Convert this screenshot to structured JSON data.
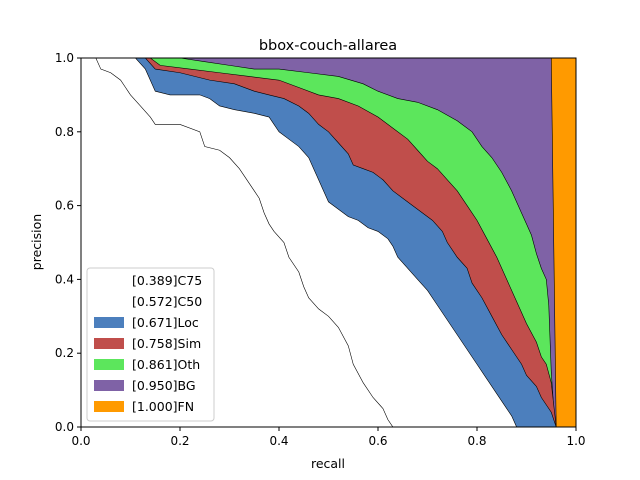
{
  "chart_data": {
    "type": "area",
    "title": "bbox-couch-allarea",
    "xlabel": "recall",
    "ylabel": "precision",
    "xlim": [
      0,
      1
    ],
    "ylim": [
      0,
      1
    ],
    "xticks": [
      "0.0",
      "0.2",
      "0.4",
      "0.6",
      "0.8",
      "1.0"
    ],
    "yticks": [
      "0.0",
      "0.2",
      "0.4",
      "0.6",
      "0.8",
      "1.0"
    ],
    "grid": false,
    "legend_position": "lower-left",
    "legend": [
      {
        "label": "[0.389]C75",
        "color": "#ffffff"
      },
      {
        "label": "[0.572]C50",
        "color": "#ffffff"
      },
      {
        "label": "[0.671]Loc",
        "color": "#4c7fbd"
      },
      {
        "label": "[0.758]Sim",
        "color": "#c04e4b"
      },
      {
        "label": "[0.861]Oth",
        "color": "#5ce65c"
      },
      {
        "label": "[0.950]BG",
        "color": "#7f62a6"
      },
      {
        "label": "[1.000]FN",
        "color": "#ff9a00"
      }
    ],
    "series": [
      {
        "name": "[0.389]C75",
        "color": "#ffffff",
        "points": [
          [
            0,
            1
          ],
          [
            0.03,
            1
          ],
          [
            0.04,
            0.97
          ],
          [
            0.06,
            0.96
          ],
          [
            0.08,
            0.94
          ],
          [
            0.09,
            0.92
          ],
          [
            0.1,
            0.9
          ],
          [
            0.12,
            0.87
          ],
          [
            0.14,
            0.84
          ],
          [
            0.15,
            0.82
          ],
          [
            0.2,
            0.82
          ],
          [
            0.24,
            0.8
          ],
          [
            0.25,
            0.76
          ],
          [
            0.28,
            0.75
          ],
          [
            0.3,
            0.73
          ],
          [
            0.32,
            0.7
          ],
          [
            0.34,
            0.66
          ],
          [
            0.36,
            0.62
          ],
          [
            0.37,
            0.58
          ],
          [
            0.38,
            0.55
          ],
          [
            0.39,
            0.53
          ],
          [
            0.41,
            0.5
          ],
          [
            0.42,
            0.46
          ],
          [
            0.44,
            0.42
          ],
          [
            0.45,
            0.38
          ],
          [
            0.46,
            0.35
          ],
          [
            0.48,
            0.32
          ],
          [
            0.5,
            0.3
          ],
          [
            0.52,
            0.27
          ],
          [
            0.54,
            0.22
          ],
          [
            0.55,
            0.17
          ],
          [
            0.57,
            0.12
          ],
          [
            0.59,
            0.08
          ],
          [
            0.61,
            0.05
          ],
          [
            0.62,
            0.02
          ],
          [
            0.63,
            0
          ]
        ]
      },
      {
        "name": "[0.572]C50",
        "color": "#ffffff",
        "points": [
          [
            0,
            1
          ],
          [
            0.11,
            1
          ],
          [
            0.13,
            0.97
          ],
          [
            0.15,
            0.91
          ],
          [
            0.18,
            0.9
          ],
          [
            0.24,
            0.9
          ],
          [
            0.26,
            0.89
          ],
          [
            0.28,
            0.87
          ],
          [
            0.31,
            0.86
          ],
          [
            0.35,
            0.85
          ],
          [
            0.38,
            0.84
          ],
          [
            0.39,
            0.82
          ],
          [
            0.4,
            0.8
          ],
          [
            0.42,
            0.78
          ],
          [
            0.44,
            0.76
          ],
          [
            0.46,
            0.73
          ],
          [
            0.47,
            0.7
          ],
          [
            0.48,
            0.67
          ],
          [
            0.49,
            0.64
          ],
          [
            0.5,
            0.61
          ],
          [
            0.52,
            0.59
          ],
          [
            0.54,
            0.57
          ],
          [
            0.56,
            0.56
          ],
          [
            0.58,
            0.54
          ],
          [
            0.6,
            0.53
          ],
          [
            0.62,
            0.51
          ],
          [
            0.63,
            0.49
          ],
          [
            0.64,
            0.46
          ],
          [
            0.66,
            0.43
          ],
          [
            0.68,
            0.4
          ],
          [
            0.7,
            0.37
          ],
          [
            0.72,
            0.33
          ],
          [
            0.74,
            0.29
          ],
          [
            0.76,
            0.25
          ],
          [
            0.78,
            0.21
          ],
          [
            0.8,
            0.17
          ],
          [
            0.82,
            0.13
          ],
          [
            0.84,
            0.09
          ],
          [
            0.86,
            0.05
          ],
          [
            0.87,
            0.03
          ],
          [
            0.88,
            0
          ]
        ]
      },
      {
        "name": "[0.671]Loc",
        "color": "#4c7fbd",
        "points": [
          [
            0,
            1
          ],
          [
            0.13,
            1
          ],
          [
            0.15,
            0.97
          ],
          [
            0.2,
            0.96
          ],
          [
            0.26,
            0.94
          ],
          [
            0.31,
            0.93
          ],
          [
            0.35,
            0.91
          ],
          [
            0.38,
            0.9
          ],
          [
            0.41,
            0.89
          ],
          [
            0.44,
            0.87
          ],
          [
            0.46,
            0.85
          ],
          [
            0.48,
            0.82
          ],
          [
            0.5,
            0.8
          ],
          [
            0.52,
            0.77
          ],
          [
            0.54,
            0.74
          ],
          [
            0.55,
            0.71
          ],
          [
            0.57,
            0.7
          ],
          [
            0.59,
            0.69
          ],
          [
            0.61,
            0.67
          ],
          [
            0.63,
            0.64
          ],
          [
            0.65,
            0.62
          ],
          [
            0.67,
            0.6
          ],
          [
            0.69,
            0.58
          ],
          [
            0.71,
            0.56
          ],
          [
            0.73,
            0.53
          ],
          [
            0.74,
            0.5
          ],
          [
            0.76,
            0.46
          ],
          [
            0.78,
            0.43
          ],
          [
            0.79,
            0.39
          ],
          [
            0.81,
            0.35
          ],
          [
            0.83,
            0.3
          ],
          [
            0.85,
            0.25
          ],
          [
            0.87,
            0.21
          ],
          [
            0.89,
            0.17
          ],
          [
            0.9,
            0.14
          ],
          [
            0.92,
            0.11
          ],
          [
            0.93,
            0.08
          ],
          [
            0.94,
            0.06
          ],
          [
            0.95,
            0.04
          ],
          [
            0.955,
            0.02
          ],
          [
            0.96,
            0
          ]
        ]
      },
      {
        "name": "[0.758]Sim",
        "color": "#c04e4b",
        "points": [
          [
            0,
            1
          ],
          [
            0.14,
            1
          ],
          [
            0.16,
            0.98
          ],
          [
            0.22,
            0.97
          ],
          [
            0.28,
            0.96
          ],
          [
            0.34,
            0.95
          ],
          [
            0.4,
            0.94
          ],
          [
            0.44,
            0.92
          ],
          [
            0.48,
            0.9
          ],
          [
            0.52,
            0.89
          ],
          [
            0.56,
            0.87
          ],
          [
            0.6,
            0.84
          ],
          [
            0.63,
            0.81
          ],
          [
            0.66,
            0.78
          ],
          [
            0.68,
            0.75
          ],
          [
            0.7,
            0.72
          ],
          [
            0.72,
            0.7
          ],
          [
            0.74,
            0.67
          ],
          [
            0.76,
            0.64
          ],
          [
            0.78,
            0.6
          ],
          [
            0.8,
            0.56
          ],
          [
            0.82,
            0.51
          ],
          [
            0.84,
            0.46
          ],
          [
            0.86,
            0.4
          ],
          [
            0.88,
            0.34
          ],
          [
            0.9,
            0.28
          ],
          [
            0.92,
            0.23
          ],
          [
            0.93,
            0.19
          ],
          [
            0.94,
            0.17
          ],
          [
            0.95,
            0.12
          ],
          [
            0.955,
            0.06
          ],
          [
            0.96,
            0
          ]
        ]
      },
      {
        "name": "[0.861]Oth",
        "color": "#5ce65c",
        "points": [
          [
            0,
            1
          ],
          [
            0.2,
            1
          ],
          [
            0.25,
            0.99
          ],
          [
            0.3,
            0.98
          ],
          [
            0.35,
            0.97
          ],
          [
            0.4,
            0.97
          ],
          [
            0.46,
            0.96
          ],
          [
            0.52,
            0.95
          ],
          [
            0.57,
            0.93
          ],
          [
            0.6,
            0.91
          ],
          [
            0.64,
            0.89
          ],
          [
            0.68,
            0.88
          ],
          [
            0.72,
            0.86
          ],
          [
            0.76,
            0.83
          ],
          [
            0.79,
            0.8
          ],
          [
            0.81,
            0.76
          ],
          [
            0.83,
            0.73
          ],
          [
            0.85,
            0.69
          ],
          [
            0.87,
            0.64
          ],
          [
            0.89,
            0.58
          ],
          [
            0.9,
            0.55
          ],
          [
            0.91,
            0.52
          ],
          [
            0.92,
            0.47
          ],
          [
            0.93,
            0.43
          ],
          [
            0.94,
            0.4
          ],
          [
            0.945,
            0.33
          ],
          [
            0.95,
            0.15
          ],
          [
            0.955,
            0.05
          ],
          [
            0.96,
            0
          ]
        ]
      },
      {
        "name": "[0.950]BG",
        "color": "#7f62a6",
        "points": [
          [
            0,
            1
          ],
          [
            0.95,
            1
          ],
          [
            0.96,
            0
          ]
        ]
      },
      {
        "name": "[1.000]FN",
        "color": "#ff9a00",
        "points": [
          [
            0,
            1
          ],
          [
            1,
            1
          ],
          [
            1,
            0
          ]
        ]
      }
    ]
  }
}
